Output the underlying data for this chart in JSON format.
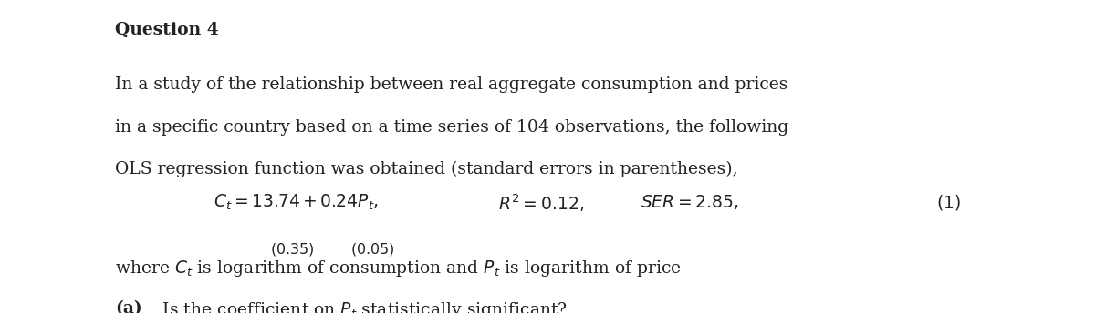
{
  "title": "Question 4",
  "background_color": "#ffffff",
  "text_color": "#222222",
  "para_line1": "In a study of the relationship between real aggregate consumption and prices",
  "para_line2": "in a specific country based on a time series of 104 observations, the following",
  "para_line3": "OLS regression function was obtained (standard errors in parentheses),",
  "equation_main": "$C_t = 13.74 + 0.24 P_t,$",
  "equation_r2": "$R^2 = 0.12,$",
  "equation_ser": "$SER = 2.85,$",
  "equation_num": "$(1)$",
  "se_intercept": "$(0.35)$",
  "se_slope": "$(0.05)$",
  "where_line": "where $C_t$ is logarithm of consumption and $P_t$ is logarithm of price",
  "part_a_bold": "(a)",
  "part_a_rest": " Is the coefficient on $P_t$ statistically significant?",
  "title_fontsize": 13.5,
  "body_fontsize": 13.5,
  "eq_fontsize": 13.5,
  "se_fontsize": 11.5
}
